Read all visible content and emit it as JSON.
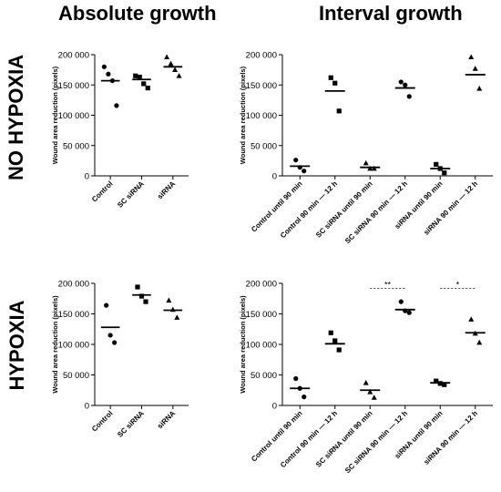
{
  "column_titles": [
    "Absolute growth",
    "Interval growth"
  ],
  "row_titles": [
    "NO HYPOXIA",
    "HYPOXIA"
  ],
  "chart_data": [
    {
      "type": "scatter",
      "panel": "no-hypoxia-absolute",
      "ylabel": "Wound area reduction (pixels)",
      "ylim": [
        0,
        200000
      ],
      "yticks": [
        0,
        50000,
        100000,
        150000,
        200000
      ],
      "ytick_labels": [
        "0",
        "50 000",
        "100 000",
        "150 000",
        "200 000"
      ],
      "categories": [
        "Control",
        "SC siRNA",
        "siRNA"
      ],
      "markers": [
        "circle",
        "square",
        "triangle"
      ],
      "points": [
        [
          180000,
          168000,
          157000,
          116000
        ],
        [
          165000,
          163000,
          152000,
          145000
        ],
        [
          196000,
          185000,
          175000,
          165000
        ]
      ],
      "means": [
        157000,
        159000,
        180000
      ],
      "significance": []
    },
    {
      "type": "scatter",
      "panel": "no-hypoxia-interval",
      "ylabel": "Wound area reduction (pixels)",
      "ylim": [
        0,
        200000
      ],
      "yticks": [
        0,
        50000,
        100000,
        150000,
        200000
      ],
      "ytick_labels": [
        "0",
        "50 000",
        "100 000",
        "150 000",
        "200 000"
      ],
      "categories": [
        "Control until 90 min",
        "Control 90 min — 12 h",
        "SC siRNA until 90 min",
        "SC siRNA 90 min — 12 h",
        "siRNA until 90 min",
        "siRNA 90 min — 12 h"
      ],
      "markers": [
        "circle",
        "square",
        "triangle",
        "circle",
        "square",
        "triangle"
      ],
      "points": [
        [
          26000,
          14000,
          8000
        ],
        [
          162000,
          153000,
          107000
        ],
        [
          21000,
          12000,
          12000
        ],
        [
          155000,
          150000,
          131000
        ],
        [
          19000,
          12000,
          5000
        ],
        [
          196000,
          177000,
          144000
        ]
      ],
      "means": [
        16000,
        140000,
        14000,
        145000,
        12000,
        167000
      ],
      "significance": []
    },
    {
      "type": "scatter",
      "panel": "hypoxia-absolute",
      "ylabel": "Wound area reduction (pixels)",
      "ylim": [
        0,
        200000
      ],
      "yticks": [
        0,
        50000,
        100000,
        150000,
        200000
      ],
      "ytick_labels": [
        "0",
        "50 000",
        "100 000",
        "150 000",
        "200 000"
      ],
      "categories": [
        "Control",
        "SC siRNA",
        "siRNA"
      ],
      "markers": [
        "circle",
        "square",
        "triangle"
      ],
      "points": [
        [
          164000,
          115000,
          103000
        ],
        [
          194000,
          179000,
          170000
        ],
        [
          172000,
          157000,
          144000
        ]
      ],
      "means": [
        128000,
        181000,
        156000
      ],
      "significance": []
    },
    {
      "type": "scatter",
      "panel": "hypoxia-interval",
      "ylabel": "Wound area reduction (pixels)",
      "ylim": [
        0,
        200000
      ],
      "yticks": [
        0,
        50000,
        100000,
        150000,
        200000
      ],
      "ytick_labels": [
        "0",
        "50 000",
        "100 000",
        "150 000",
        "200 000"
      ],
      "categories": [
        "Control until 90 min",
        "Control 90 min — 12 h",
        "SC siRNA until 90 min",
        "SC siRNA 90 min — 12 h",
        "siRNA until 90 min",
        "siRNA 90 min — 12 h"
      ],
      "markers": [
        "circle",
        "square",
        "triangle",
        "circle",
        "square",
        "triangle"
      ],
      "points": [
        [
          44000,
          28000,
          14000
        ],
        [
          119000,
          106000,
          91000
        ],
        [
          37000,
          22000,
          13000
        ],
        [
          170000,
          155000,
          152000
        ],
        [
          40000,
          36000,
          34000
        ],
        [
          141000,
          118000,
          103000
        ]
      ],
      "means": [
        28000,
        101000,
        25000,
        157000,
        37000,
        119000
      ],
      "significance": [
        {
          "from": 2,
          "to": 3,
          "label": "**",
          "y": 192000
        },
        {
          "from": 4,
          "to": 5,
          "label": "*",
          "y": 192000
        }
      ]
    }
  ]
}
